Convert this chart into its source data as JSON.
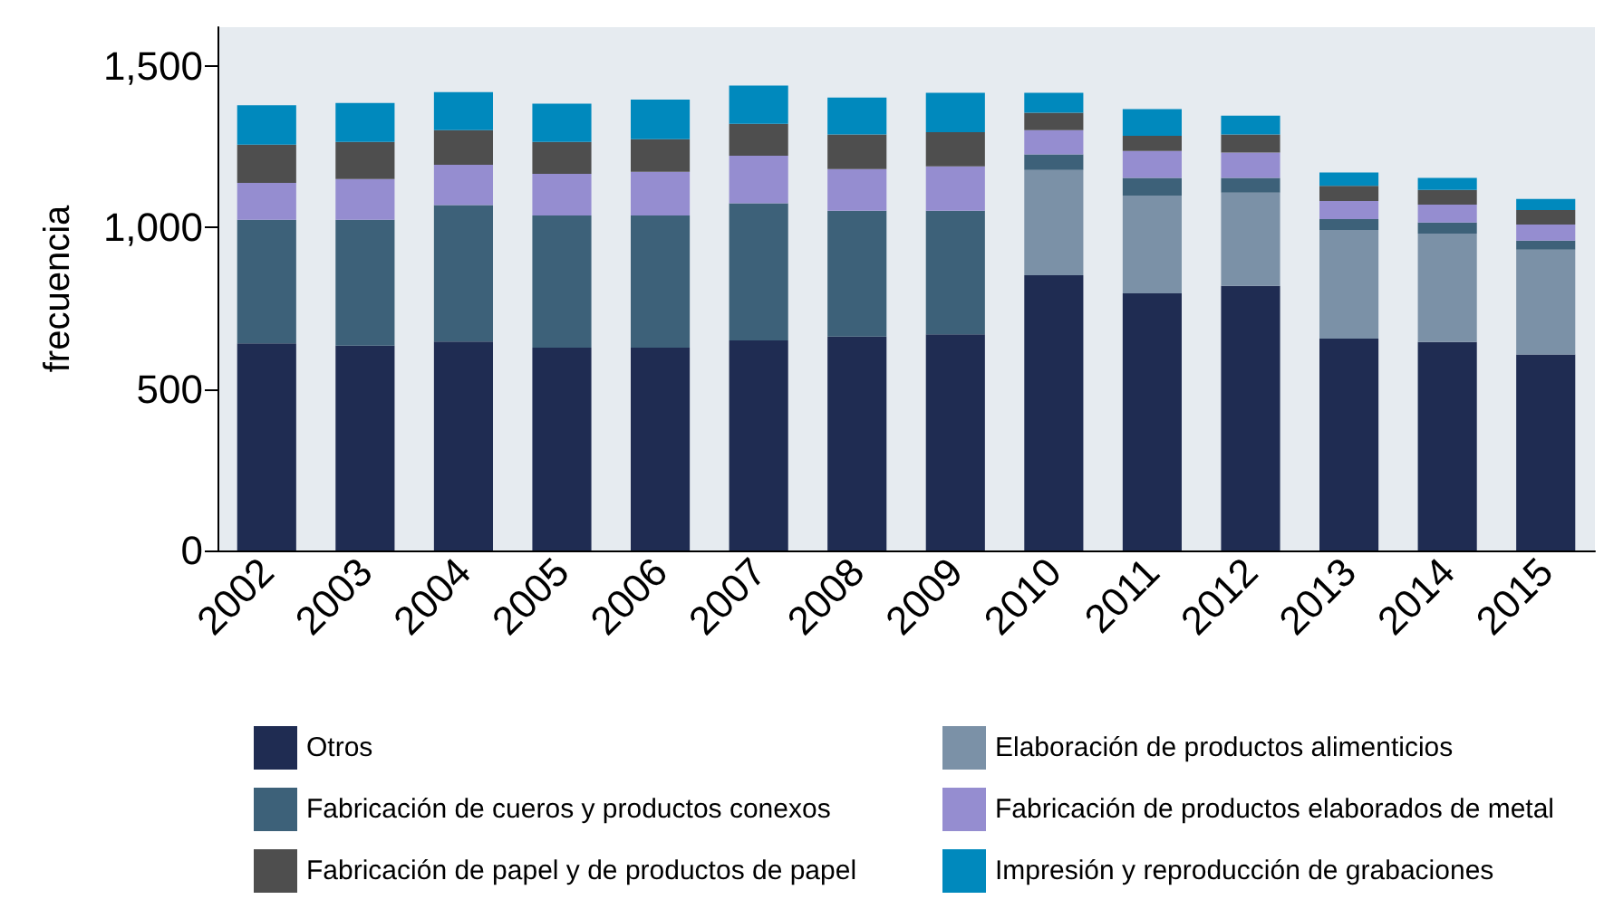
{
  "chart_data": {
    "type": "bar",
    "stacked": true,
    "ylabel": "frecuencia",
    "categories": [
      "2002",
      "2003",
      "2004",
      "2005",
      "2006",
      "2007",
      "2008",
      "2009",
      "2010",
      "2011",
      "2012",
      "2013",
      "2014",
      "2015"
    ],
    "series": [
      {
        "name": "Otros",
        "color": "#1f2c52",
        "values": [
          641,
          634,
          647,
          628,
          628,
          650,
          662,
          669,
          852,
          796,
          819,
          656,
          645,
          607
        ]
      },
      {
        "name": "Elaboración de productos alimenticios",
        "color": "#7b91a7",
        "values": [
          0,
          0,
          0,
          0,
          0,
          0,
          0,
          0,
          326,
          303,
          289,
          336,
          336,
          324
        ]
      },
      {
        "name": "Fabricación de cueros y productos conexos",
        "color": "#3d6179",
        "values": [
          383,
          390,
          422,
          409,
          409,
          425,
          390,
          383,
          48,
          54,
          45,
          34,
          34,
          28
        ]
      },
      {
        "name": "Fabricación de productos elaborados de metal",
        "color": "#958dd0",
        "values": [
          114,
          126,
          125,
          129,
          135,
          147,
          129,
          137,
          75,
          84,
          79,
          56,
          56,
          50
        ]
      },
      {
        "name": "Fabricación de papel y de productos de papel",
        "color": "#4e4e4e",
        "values": [
          118,
          115,
          107,
          99,
          101,
          99,
          107,
          106,
          54,
          47,
          56,
          47,
          45,
          45
        ]
      },
      {
        "name": "Impresión y reproducción de grabaciones",
        "color": "#0089bd",
        "values": [
          122,
          120,
          118,
          118,
          123,
          118,
          114,
          122,
          62,
          82,
          58,
          41,
          37,
          34
        ]
      }
    ],
    "ylim": [
      0,
      1620
    ],
    "yticks": [
      0,
      500,
      {
        "value": 1000,
        "label": "1,000"
      },
      {
        "value": 1500,
        "label": "1,500"
      }
    ],
    "grid": false,
    "legend": "bottom"
  }
}
